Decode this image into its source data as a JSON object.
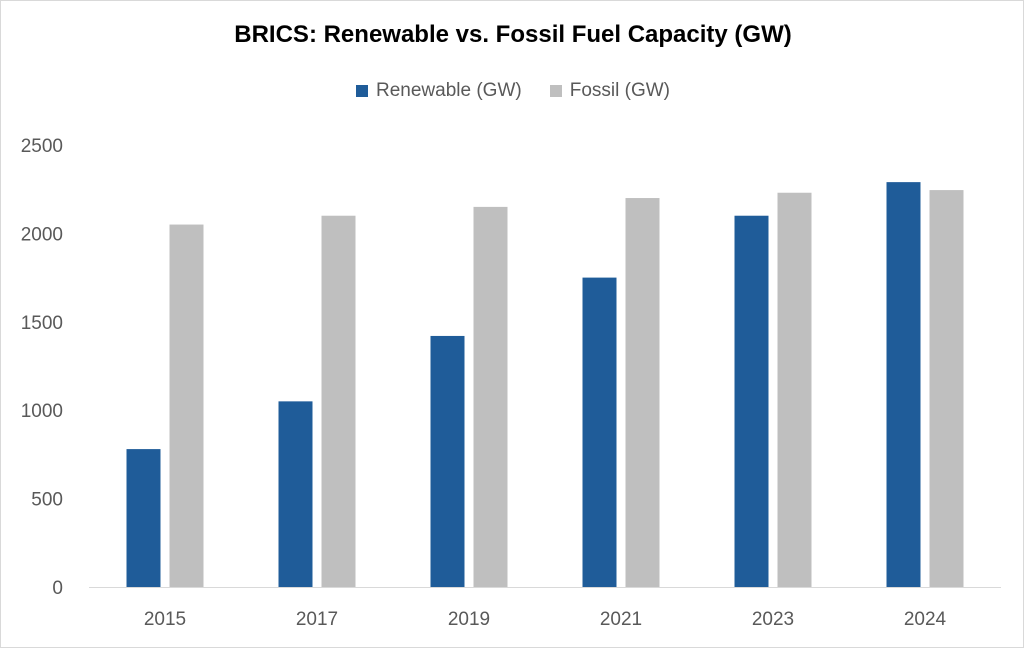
{
  "chart_data": {
    "type": "bar",
    "title": "BRICS: Renewable vs. Fossil Fuel Capacity (GW)",
    "xlabel": "",
    "ylabel": "",
    "categories": [
      "2015",
      "2017",
      "2019",
      "2021",
      "2023",
      "2024"
    ],
    "series": [
      {
        "name": "Renewable (GW)",
        "color": "#1f5c99",
        "values": [
          780,
          1050,
          1420,
          1750,
          2100,
          2290
        ]
      },
      {
        "name": "Fossil (GW)",
        "color": "#bfbfbf",
        "values": [
          2050,
          2100,
          2150,
          2200,
          2230,
          2245
        ]
      }
    ],
    "ylim": [
      0,
      2500
    ],
    "yticks": [
      "0",
      "500",
      "1000",
      "1500",
      "2000",
      "2500"
    ],
    "grid": false,
    "legend_position": "top"
  }
}
